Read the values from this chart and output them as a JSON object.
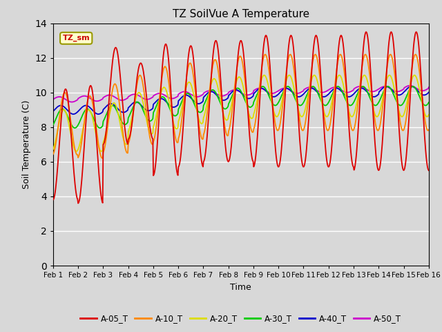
{
  "title": "TZ SoilVue A Temperature",
  "xlabel": "Time",
  "ylabel": "Soil Temperature (C)",
  "ylim": [
    0,
    14
  ],
  "yticks": [
    0,
    2,
    4,
    6,
    8,
    10,
    12,
    14
  ],
  "series_colors": {
    "A-05_T": "#dd0000",
    "A-10_T": "#ff8800",
    "A-20_T": "#dddd00",
    "A-30_T": "#00cc00",
    "A-40_T": "#0000cc",
    "A-50_T": "#cc00cc"
  },
  "tz_sm_box_color": "#ffffcc",
  "tz_sm_text_color": "#cc0000",
  "bg_color": "#d8d8d8",
  "plot_bg_color": "#d8d8d8",
  "grid_color": "#ffffff",
  "xtick_labels": [
    "Feb 1",
    "Feb 2",
    "Feb 3",
    "Feb 4",
    "Feb 5",
    "Feb 6",
    "Feb 7",
    "Feb 8",
    "Feb 9",
    "Feb 10",
    "Feb 11",
    "Feb 12",
    "Feb 13",
    "Feb 14",
    "Feb 15",
    "Feb 16"
  ]
}
